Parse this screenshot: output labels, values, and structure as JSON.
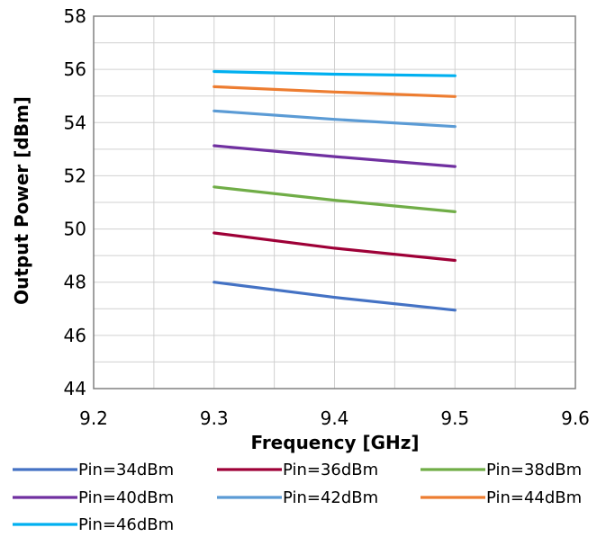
{
  "chart_data": {
    "type": "line",
    "xlabel": "Frequency [GHz]",
    "ylabel": "Output Power [dBm]",
    "xlim": [
      9.2,
      9.6
    ],
    "ylim": [
      44,
      58
    ],
    "x_ticks": [
      "9.2",
      "9.3",
      "9.4",
      "9.5",
      "9.6"
    ],
    "y_ticks": [
      "44",
      "46",
      "48",
      "50",
      "52",
      "54",
      "56",
      "58"
    ],
    "grid": "major and minor",
    "legend_position": "bottom",
    "x": [
      9.3,
      9.4,
      9.5
    ],
    "series": [
      {
        "name": "Pin=34dBm",
        "color": "#4472C4",
        "values": [
          48.0,
          47.43,
          46.95
        ]
      },
      {
        "name": "Pin=36dBm",
        "color": "#9E0037",
        "values": [
          49.85,
          49.28,
          48.82
        ]
      },
      {
        "name": "Pin=38dBm",
        "color": "#70AD47",
        "values": [
          51.58,
          51.08,
          50.65
        ]
      },
      {
        "name": "Pin=40dBm",
        "color": "#7030A0",
        "values": [
          53.13,
          52.72,
          52.35
        ]
      },
      {
        "name": "Pin=42dBm",
        "color": "#5B9BD5",
        "values": [
          54.44,
          54.12,
          53.85
        ]
      },
      {
        "name": "Pin=44dBm",
        "color": "#ED7D31",
        "values": [
          55.35,
          55.15,
          54.98
        ]
      },
      {
        "name": "Pin=46dBm",
        "color": "#00B0F0",
        "values": [
          55.92,
          55.82,
          55.76
        ]
      }
    ]
  }
}
